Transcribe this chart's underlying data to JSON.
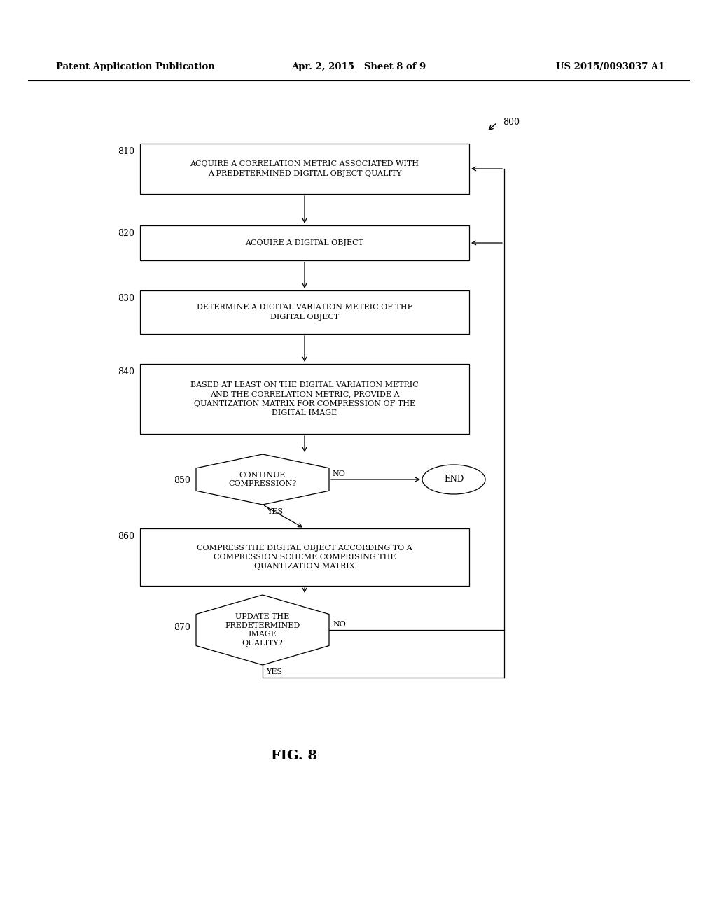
{
  "bg_color": "#ffffff",
  "header_left": "Patent Application Publication",
  "header_mid": "Apr. 2, 2015   Sheet 8 of 9",
  "header_right": "US 2015/0093037 A1",
  "fig_label": "FIG. 8",
  "diagram_label": "800",
  "box810_text": "ACQUIRE A CORRELATION METRIC ASSOCIATED WITH\nA PREDETERMINED DIGITAL OBJECT QUALITY",
  "box820_text": "ACQUIRE A DIGITAL OBJECT",
  "box830_text": "DETERMINE A DIGITAL VARIATION METRIC OF THE\nDIGITAL OBJECT",
  "box840_text": "BASED AT LEAST ON THE DIGITAL VARIATION METRIC\nAND THE CORRELATION METRIC, PROVIDE A\nQUANTIZATION MATRIX FOR COMPRESSION OF THE\nDIGITAL IMAGE",
  "box860_text": "COMPRESS THE DIGITAL OBJECT ACCORDING TO A\nCOMPRESSION SCHEME COMPRISING THE\nQUANTIZATION MATRIX",
  "d850_text": "CONTINUE\nCOMPRESSION?",
  "d870_text": "UPDATE THE\nPREDETERMINED\nIMAGE\nQUALITY?",
  "end_text": "END",
  "yes_label": "YES",
  "no_label": "NO",
  "font_size_box": 8.0,
  "font_size_label": 9.0,
  "font_size_header": 9.5,
  "font_size_fig": 14,
  "font_size_end": 8.5
}
